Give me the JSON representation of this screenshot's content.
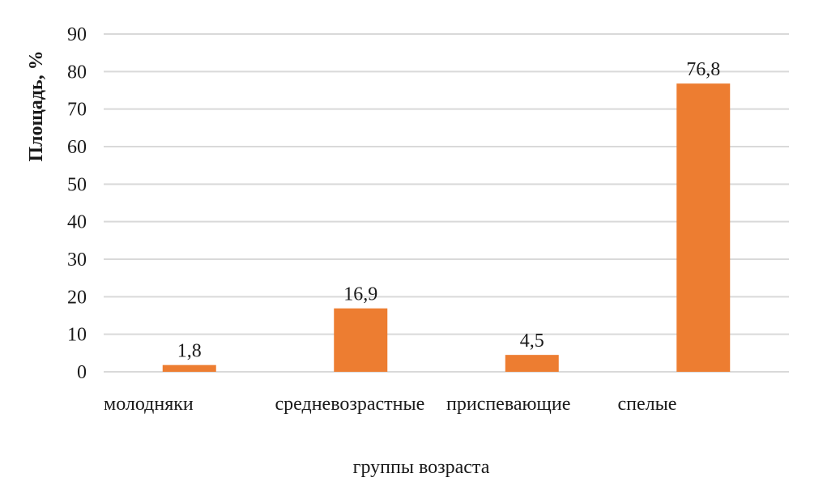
{
  "chart_data": {
    "type": "bar",
    "categories": [
      "молодняки",
      "средневозрастные",
      "приспевающие",
      "спелые"
    ],
    "values": [
      1.8,
      16.9,
      4.5,
      76.8
    ],
    "data_labels": [
      "1,8",
      "16,9",
      "4,5",
      "76,8"
    ],
    "xlabel": "группы возраста",
    "ylabel": "Площадь, %",
    "ylim": [
      0,
      90
    ],
    "yticks": [
      0,
      10,
      20,
      30,
      40,
      50,
      60,
      70,
      80,
      90
    ],
    "grid": true,
    "legend": "none",
    "bar_color": "#ED7D31",
    "grid_color": "#D9D9D9"
  }
}
